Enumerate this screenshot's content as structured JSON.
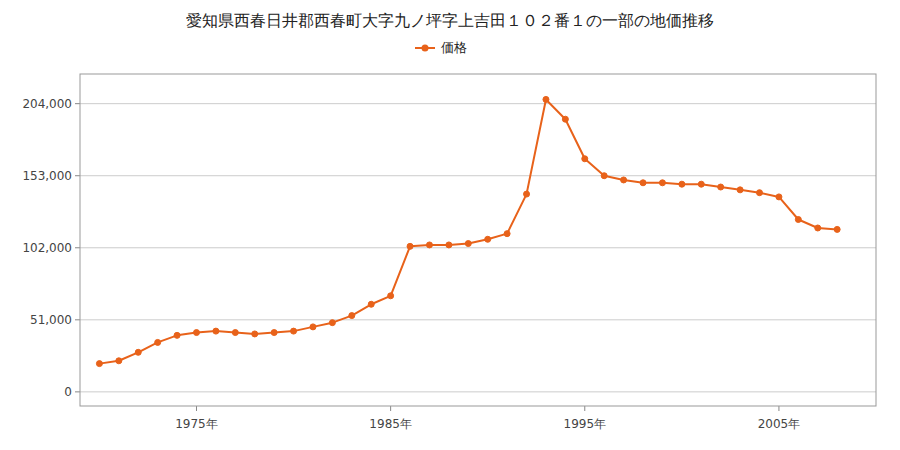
{
  "chart_data": {
    "type": "line",
    "title": "愛知県西春日井郡西春町大字九ノ坪字上吉田１０２番１の一部の地価推移",
    "x": [
      1970,
      1971,
      1972,
      1973,
      1974,
      1975,
      1976,
      1977,
      1978,
      1979,
      1980,
      1981,
      1982,
      1983,
      1984,
      1985,
      1986,
      1987,
      1988,
      1989,
      1990,
      1991,
      1992,
      1993,
      1994,
      1995,
      1996,
      1997,
      1998,
      1999,
      2000,
      2001,
      2002,
      2003,
      2004,
      2005,
      2006,
      2007,
      2008
    ],
    "series": [
      {
        "name": "価格",
        "color": "#e8621a",
        "marker": "circle",
        "line_style": "solid",
        "values": [
          20000,
          22000,
          28000,
          35000,
          40000,
          42000,
          43000,
          42000,
          41000,
          42000,
          43000,
          46000,
          49000,
          54000,
          62000,
          68000,
          103000,
          104000,
          104000,
          105000,
          108000,
          112000,
          140000,
          207000,
          193000,
          165000,
          153000,
          150000,
          148000,
          148000,
          147000,
          147000,
          145000,
          143000,
          141000,
          138000,
          122000,
          116000,
          115000
        ]
      }
    ],
    "xlim": [
      1969,
      2010
    ],
    "xticks": [
      {
        "value": 1975,
        "label": "1975年"
      },
      {
        "value": 1985,
        "label": "1985年"
      },
      {
        "value": 1995,
        "label": "1995年"
      },
      {
        "value": 2005,
        "label": "2005年"
      }
    ],
    "ylim": [
      -10000,
      225000
    ],
    "yticks": [
      0,
      {
        "value": 51000,
        "label": "51,000"
      },
      {
        "value": 102000,
        "label": "102,000"
      },
      {
        "value": 153000,
        "label": "153,000"
      },
      {
        "value": 204000,
        "label": "204,000"
      }
    ],
    "grid": "y",
    "legend": "top"
  }
}
